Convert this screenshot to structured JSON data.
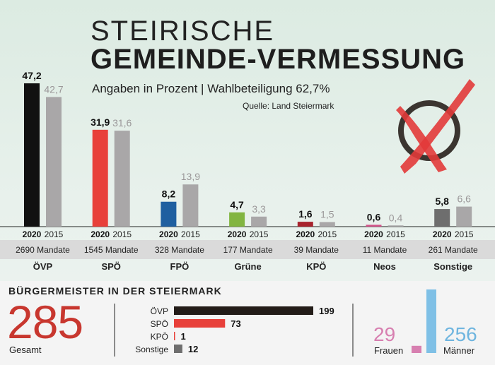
{
  "header": {
    "title_line1": "STEIRISCHE",
    "title_line2": "GEMEINDE-VERMESSUNG",
    "subtitle": "Angaben in Prozent | Wahlbeteiligung 62,7%",
    "source": "Quelle: Land Steiermark"
  },
  "chart_data": [
    {
      "type": "bar",
      "categories": [
        "ÖVP",
        "SPÖ",
        "FPÖ",
        "Grüne",
        "KPÖ",
        "Neos",
        "Sonstige"
      ],
      "series": [
        {
          "name": "2020",
          "values": [
            47.2,
            31.9,
            8.2,
            4.7,
            1.6,
            0.6,
            5.8
          ],
          "labels": [
            "47,2",
            "31,9",
            "8,2",
            "4,7",
            "1,6",
            "0,6",
            "5,8"
          ],
          "colors": [
            "#111111",
            "#e8403a",
            "#1f5fa0",
            "#82b541",
            "#a8232d",
            "#d4538a",
            "#6e6e6e"
          ]
        },
        {
          "name": "2015",
          "values": [
            42.7,
            31.6,
            13.9,
            3.3,
            1.5,
            0.4,
            6.6
          ],
          "labels": [
            "42,7",
            "31,6",
            "13,9",
            "3,3",
            "1,5",
            "0,4",
            "6,6"
          ],
          "color": "#a9a7a8"
        }
      ],
      "mandates": [
        "2690 Mandate",
        "1545 Mandate",
        "328 Mandate",
        "177 Mandate",
        "39 Mandate",
        "11 Mandate",
        "261 Mandate"
      ],
      "ylim": [
        0,
        50
      ]
    },
    {
      "type": "bar",
      "orientation": "horizontal",
      "title": "BÜRGERMEISTER IN DER STEIERMARK",
      "categories": [
        "ÖVP",
        "SPÖ",
        "KPÖ",
        "Sonstige"
      ],
      "values": [
        199,
        73,
        1,
        12
      ],
      "labels": [
        "199",
        "73",
        "1",
        "12"
      ],
      "colors": [
        "#231c18",
        "#e8403a",
        "#e8403a",
        "#6e6e6e"
      ]
    },
    {
      "type": "bar",
      "categories": [
        "Frauen",
        "Männer"
      ],
      "values": [
        29,
        256
      ],
      "labels": [
        "29",
        "256"
      ],
      "colors": [
        "#d77fb0",
        "#7fc0e6"
      ]
    }
  ],
  "mayors": {
    "total": "285",
    "total_label": "Gesamt"
  },
  "icon": {
    "name": "ballot-cross-icon",
    "ring_color": "#3b3530",
    "cross_color": "#e23a3a"
  }
}
